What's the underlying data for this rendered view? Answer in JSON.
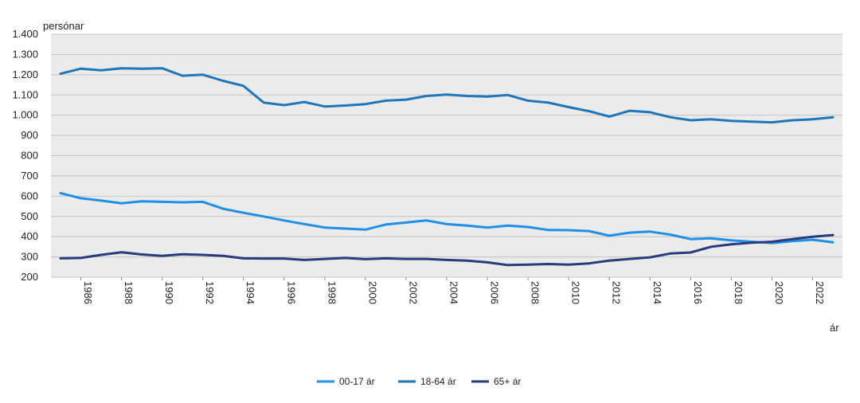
{
  "chart_data": {
    "type": "line",
    "ylabel": "persónar",
    "xlabel": "ár",
    "ylim": [
      200,
      1400
    ],
    "yticks": [
      200,
      300,
      400,
      500,
      600,
      700,
      800,
      900,
      1000,
      1100,
      1200,
      1300,
      1400
    ],
    "ytick_labels": [
      "200",
      "300",
      "400",
      "500",
      "600",
      "700",
      "800",
      "900",
      "1.000",
      "1.100",
      "1.200",
      "1.300",
      "1.400"
    ],
    "xlim": [
      1985,
      2023
    ],
    "xticks": [
      1986,
      1988,
      1990,
      1992,
      1994,
      1996,
      1998,
      2000,
      2002,
      2004,
      2006,
      2008,
      2010,
      2012,
      2014,
      2016,
      2018,
      2020,
      2022
    ],
    "grid": true,
    "legend_position": "bottom-center",
    "x": [
      1985,
      1986,
      1987,
      1988,
      1989,
      1990,
      1991,
      1992,
      1993,
      1994,
      1995,
      1996,
      1997,
      1998,
      1999,
      2000,
      2001,
      2002,
      2003,
      2004,
      2005,
      2006,
      2007,
      2008,
      2009,
      2010,
      2011,
      2012,
      2013,
      2014,
      2015,
      2016,
      2017,
      2018,
      2019,
      2020,
      2021,
      2022,
      2023
    ],
    "series": [
      {
        "name": "00-17 ár",
        "color": "#1e90e8",
        "values": [
          615,
          590,
          578,
          565,
          575,
          572,
          570,
          572,
          538,
          518,
          500,
          480,
          462,
          445,
          440,
          435,
          460,
          470,
          480,
          462,
          455,
          445,
          455,
          448,
          433,
          432,
          428,
          405,
          420,
          425,
          410,
          388,
          392,
          382,
          375,
          368,
          378,
          385,
          372
        ]
      },
      {
        "name": "18-64 ár",
        "color": "#1f76b8",
        "values": [
          1205,
          1230,
          1222,
          1232,
          1230,
          1232,
          1195,
          1200,
          1170,
          1145,
          1062,
          1050,
          1065,
          1043,
          1048,
          1055,
          1072,
          1077,
          1095,
          1102,
          1095,
          1092,
          1100,
          1072,
          1062,
          1040,
          1020,
          993,
          1022,
          1015,
          990,
          975,
          980,
          972,
          968,
          965,
          975,
          980,
          990
        ]
      },
      {
        "name": "65+ ár",
        "color": "#283b7c",
        "values": [
          293,
          295,
          310,
          323,
          312,
          305,
          313,
          310,
          305,
          293,
          292,
          292,
          285,
          290,
          295,
          289,
          293,
          290,
          290,
          285,
          282,
          273,
          260,
          262,
          265,
          262,
          268,
          282,
          290,
          298,
          317,
          322,
          350,
          362,
          370,
          375,
          388,
          400,
          408
        ]
      }
    ]
  }
}
